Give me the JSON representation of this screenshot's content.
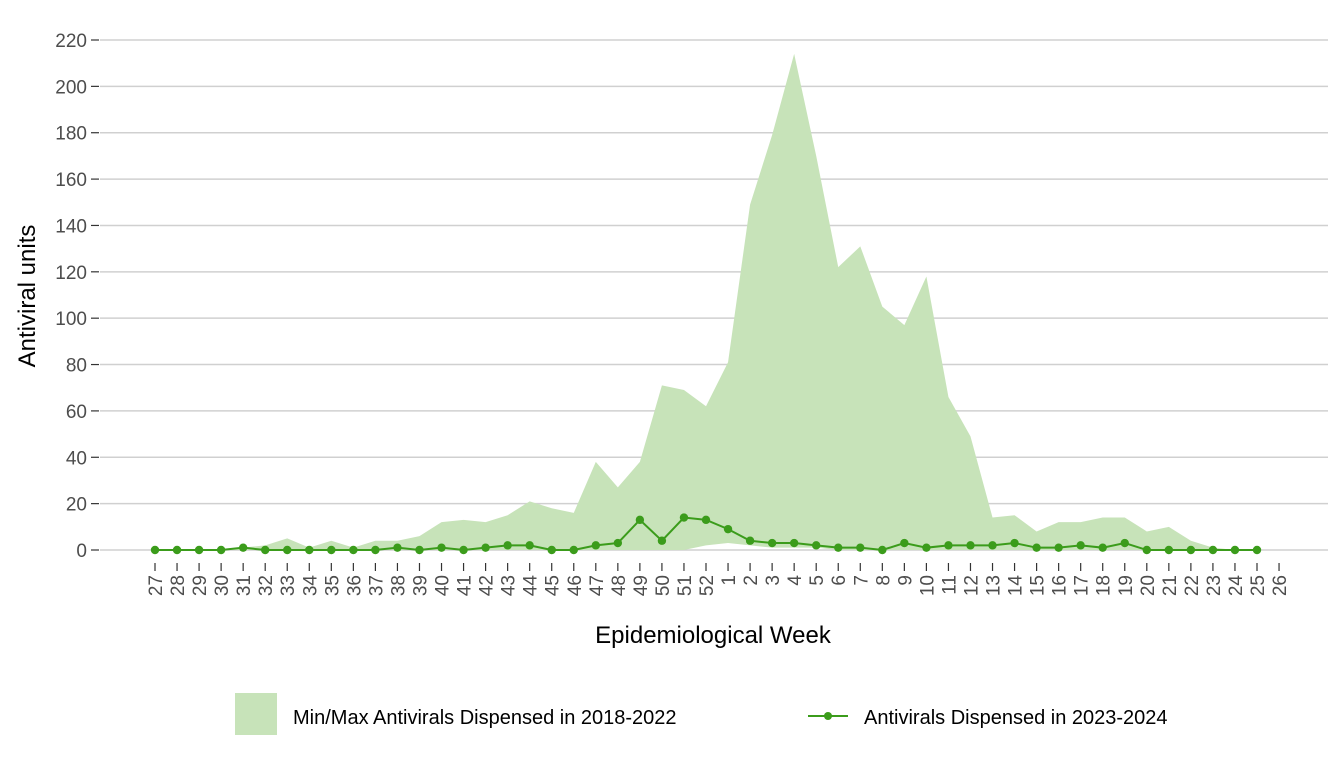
{
  "chart_data": {
    "type": "area",
    "xlabel": "Epidemiological Week",
    "ylabel": "Antiviral units",
    "ylim": [
      0,
      220
    ],
    "yticks": [
      0,
      20,
      40,
      60,
      80,
      100,
      120,
      140,
      160,
      180,
      200,
      220
    ],
    "grid": true,
    "legend_position": "bottom",
    "categories": [
      "27",
      "28",
      "29",
      "30",
      "31",
      "32",
      "33",
      "34",
      "35",
      "36",
      "37",
      "38",
      "39",
      "40",
      "41",
      "42",
      "43",
      "44",
      "45",
      "46",
      "47",
      "48",
      "49",
      "50",
      "51",
      "52",
      "1",
      "2",
      "3",
      "4",
      "5",
      "6",
      "7",
      "8",
      "9",
      "10",
      "11",
      "12",
      "13",
      "14",
      "15",
      "16",
      "17",
      "18",
      "19",
      "20",
      "21",
      "22",
      "23",
      "24",
      "25",
      "26"
    ],
    "series": [
      {
        "name": "Min/Max Antivirals Dispensed in 2018-2022",
        "kind": "ribbon",
        "color": "#c7e3b9",
        "min": [
          0,
          0,
          0,
          0,
          0,
          0,
          0,
          0,
          0,
          0,
          0,
          0,
          0,
          0,
          0,
          0,
          0,
          0,
          0,
          0,
          0,
          0,
          0,
          0,
          0,
          2,
          3,
          2,
          1,
          1,
          1,
          0,
          0,
          0,
          0,
          0,
          0,
          0,
          0,
          0,
          0,
          0,
          0,
          0,
          0,
          0,
          0,
          0,
          0,
          0,
          0,
          0
        ],
        "max": [
          0,
          0,
          0,
          0,
          1,
          2,
          5,
          1,
          4,
          1,
          4,
          4,
          6,
          12,
          13,
          12,
          15,
          21,
          18,
          16,
          38,
          27,
          38,
          71,
          69,
          62,
          81,
          149,
          179,
          214,
          170,
          122,
          131,
          105,
          97,
          118,
          66,
          49,
          14,
          15,
          8,
          12,
          12,
          14,
          14,
          8,
          10,
          4,
          1,
          0,
          0,
          0
        ]
      },
      {
        "name": "Antivirals Dispensed in 2023-2024",
        "kind": "line",
        "color": "#3b9c1b",
        "values": [
          0,
          0,
          0,
          0,
          1,
          0,
          0,
          0,
          0,
          0,
          0,
          1,
          0,
          1,
          0,
          1,
          2,
          2,
          0,
          0,
          2,
          3,
          13,
          4,
          14,
          13,
          9,
          4,
          3,
          3,
          2,
          1,
          1,
          0,
          3,
          1,
          2,
          2,
          2,
          3,
          1,
          1,
          2,
          1,
          3,
          0,
          0,
          0,
          0,
          0,
          0,
          null
        ]
      }
    ]
  }
}
